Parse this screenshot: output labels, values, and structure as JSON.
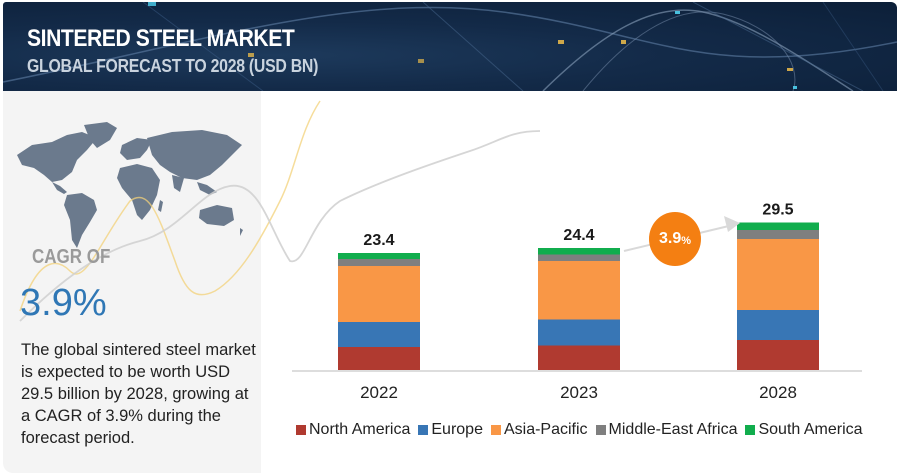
{
  "header": {
    "title": "SINTERED STEEL MARKET",
    "subtitle": "GLOBAL FORECAST TO 2028 (USD BN)"
  },
  "left_panel": {
    "map_icon": "world-map",
    "cagr_label": "CAGR OF",
    "cagr_value": "3.9%",
    "description": "The global sintered steel market is expected to be worth USD 29.5 billion by 2028, growing at a CAGR of 3.9% during the forecast period."
  },
  "cagr_bubble": {
    "value": "3.9",
    "unit": "%"
  },
  "colors": {
    "North America": "#b03a30",
    "Europe": "#3876b5",
    "Asia-Pacific": "#f99746",
    "Middle-East Africa": "#7f7f7f",
    "South America": "#11ad4d",
    "header_bg": "#132a48",
    "cagr_accent": "#2f77b5",
    "bubble": "#f47f12"
  },
  "chart_data": {
    "type": "bar",
    "stacked": true,
    "title": "Sintered Steel Market, Global Forecast to 2028 (USD BN)",
    "xlabel": "",
    "ylabel": "",
    "categories": [
      "2022",
      "2023",
      "2028"
    ],
    "totals": [
      "23.4",
      "24.4",
      "29.5"
    ],
    "series": [
      {
        "name": "North America",
        "values": [
          4.6,
          4.9,
          6.0
        ]
      },
      {
        "name": "Europe",
        "values": [
          5.0,
          5.2,
          6.0
        ]
      },
      {
        "name": "Asia-Pacific",
        "values": [
          11.2,
          11.7,
          14.2
        ]
      },
      {
        "name": "Middle-East Africa",
        "values": [
          1.4,
          1.3,
          1.8
        ]
      },
      {
        "name": "South America",
        "values": [
          1.2,
          1.3,
          1.5
        ]
      }
    ],
    "ylim": [
      0,
      32
    ],
    "grid": false,
    "legend_position": "bottom",
    "annotation": "3.9% CAGR arrow from 2023 to 2028"
  }
}
